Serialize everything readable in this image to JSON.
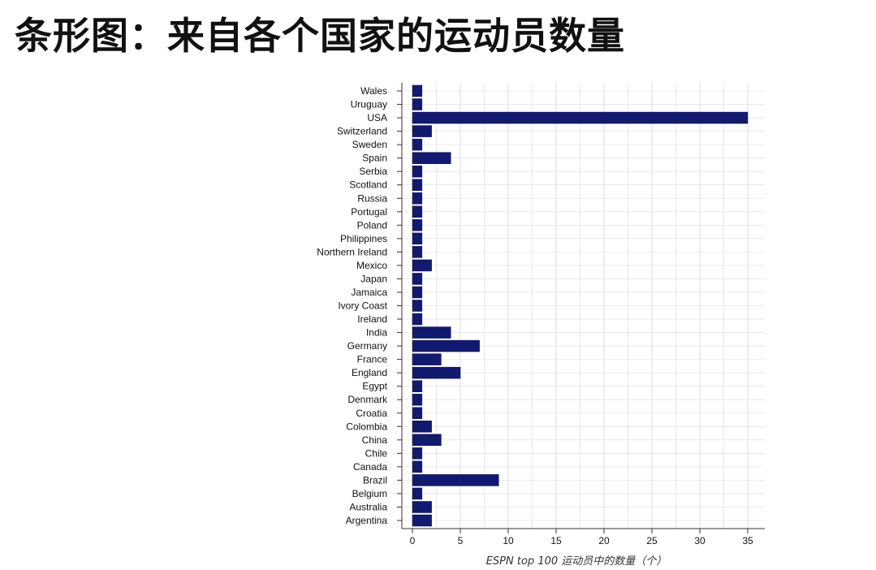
{
  "page_title": "条形图：来自各个国家的运动员数量",
  "colors": {
    "bar": "#111a6e",
    "grid": "#dcdcdc",
    "axis": "#333333"
  },
  "chart_data": {
    "type": "bar",
    "orientation": "horizontal",
    "title": "",
    "xlabel": "ESPN top 100 运动员中的数量（个）",
    "ylabel": "",
    "xlim": [
      0,
      36
    ],
    "xticks": [
      0,
      5,
      10,
      15,
      20,
      25,
      30,
      35
    ],
    "grid": true,
    "categories": [
      "Wales",
      "Uruguay",
      "USA",
      "Switzerland",
      "Sweden",
      "Spain",
      "Serbia",
      "Scotland",
      "Russia",
      "Portugal",
      "Poland",
      "Philippines",
      "Northern Ireland",
      "Mexico",
      "Japan",
      "Jamaica",
      "Ivory Coast",
      "Ireland",
      "India",
      "Germany",
      "France",
      "England",
      "Egypt",
      "Denmark",
      "Croatia",
      "Colombia",
      "China",
      "Chile",
      "Canada",
      "Brazil",
      "Belgium",
      "Australia",
      "Argentina"
    ],
    "values": [
      1,
      1,
      35,
      2,
      1,
      4,
      1,
      1,
      1,
      1,
      1,
      1,
      1,
      2,
      1,
      1,
      1,
      1,
      4,
      7,
      3,
      5,
      1,
      1,
      1,
      2,
      3,
      1,
      1,
      9,
      1,
      2,
      2
    ]
  }
}
